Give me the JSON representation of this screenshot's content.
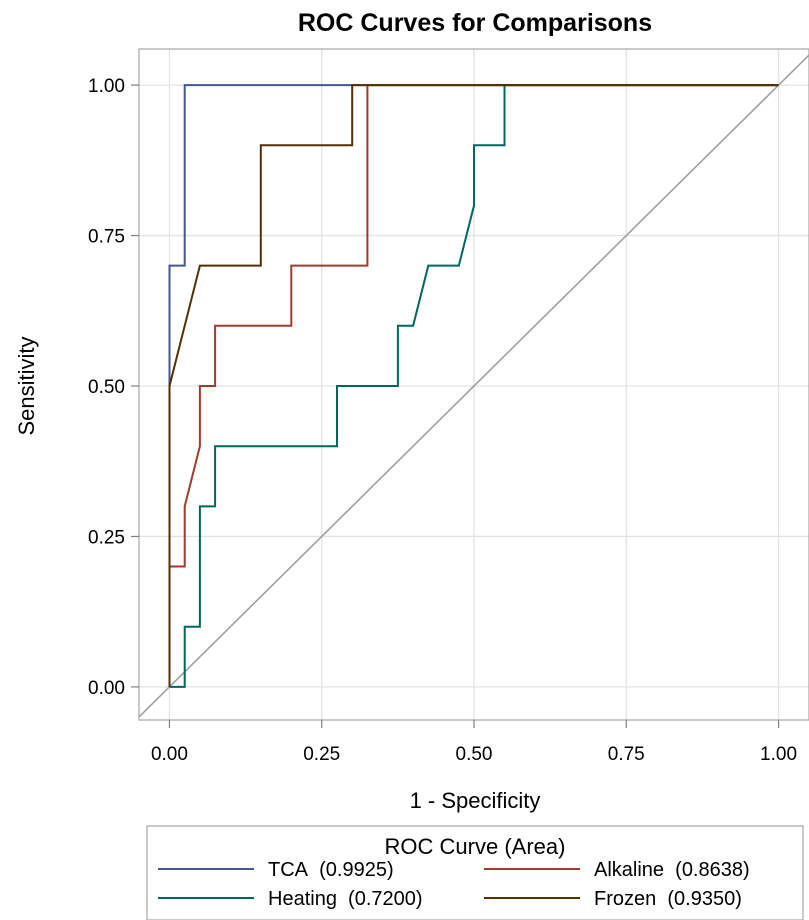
{
  "chart_data": {
    "type": "line",
    "title": "ROC Curves for Comparisons",
    "xlabel": "1 - Specificity",
    "ylabel": "Sensitivity",
    "xlim": [
      -0.05,
      1.05
    ],
    "ylim": [
      -0.055,
      1.06
    ],
    "xticks": [
      "0.00",
      "0.25",
      "0.50",
      "0.75",
      "1.00"
    ],
    "yticks": [
      "0.00",
      "0.25",
      "0.50",
      "0.75",
      "1.00"
    ],
    "xtick_values": [
      0,
      0.25,
      0.5,
      0.75,
      1.0
    ],
    "ytick_values": [
      0,
      0.25,
      0.5,
      0.75,
      1.0
    ],
    "grid": true,
    "reference_line": {
      "x": [
        0,
        1
      ],
      "y": [
        0,
        1
      ],
      "color": "#a0a0a0"
    },
    "legend": {
      "title": "ROC Curve (Area)",
      "position": "bottom",
      "entries": [
        {
          "name": "TCA",
          "area": "(0.9925)"
        },
        {
          "name": "Alkaline",
          "area": "(0.8638)"
        },
        {
          "name": "Heating",
          "area": "(0.7200)"
        },
        {
          "name": "Frozen",
          "area": "(0.9350)"
        }
      ]
    },
    "series": [
      {
        "name": "TCA",
        "color": "#445694",
        "x": [
          0,
          0,
          0.025,
          0.025,
          1.0
        ],
        "y": [
          0,
          0.7,
          0.7,
          1.0,
          1.0
        ]
      },
      {
        "name": "Alkaline",
        "color": "#a23a2e",
        "x": [
          0,
          0,
          0.025,
          0.025,
          0.05,
          0.05,
          0.075,
          0.075,
          0.2,
          0.2,
          0.325,
          0.325,
          1.0
        ],
        "y": [
          0,
          0.2,
          0.2,
          0.3,
          0.4,
          0.5,
          0.5,
          0.6,
          0.6,
          0.7,
          0.7,
          1.0,
          1.0
        ]
      },
      {
        "name": "Heating",
        "color": "#01665e",
        "x": [
          0,
          0.025,
          0.025,
          0.05,
          0.05,
          0.075,
          0.075,
          0.275,
          0.275,
          0.375,
          0.375,
          0.4,
          0.425,
          0.475,
          0.5,
          0.5,
          0.55,
          0.55,
          1.0
        ],
        "y": [
          0,
          0,
          0.1,
          0.1,
          0.3,
          0.3,
          0.4,
          0.4,
          0.5,
          0.5,
          0.6,
          0.6,
          0.7,
          0.7,
          0.8,
          0.9,
          0.9,
          1.0,
          1.0
        ]
      },
      {
        "name": "Frozen",
        "color": "#543005",
        "x": [
          0,
          0,
          0.05,
          0.15,
          0.15,
          0.3,
          0.3,
          1.0
        ],
        "y": [
          0,
          0.5,
          0.7,
          0.7,
          0.9,
          0.9,
          1.0,
          1.0
        ]
      }
    ]
  }
}
